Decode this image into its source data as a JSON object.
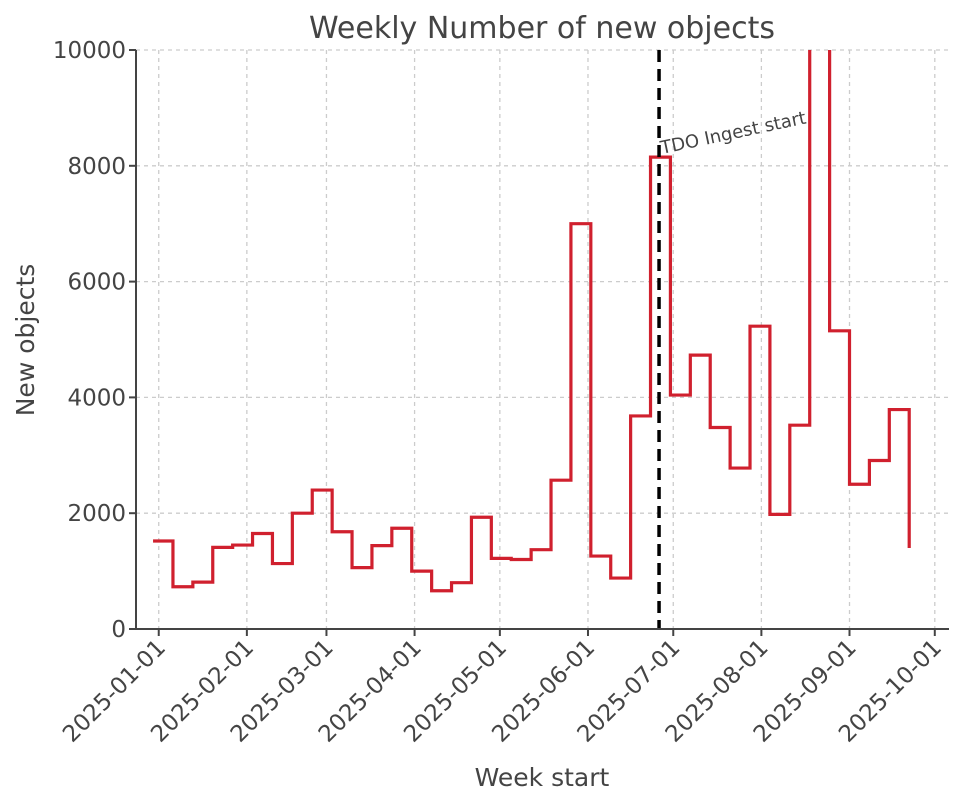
{
  "chart_data": {
    "type": "line",
    "step": "post",
    "title": "Weekly Number of new objects",
    "xlabel": "Week start",
    "ylabel": "New objects",
    "ylim": [
      0,
      10000
    ],
    "xlim": [
      "2024-12-24",
      "2025-10-06"
    ],
    "grid": true,
    "color": "#d0202e",
    "yticks": [
      0,
      2000,
      4000,
      6000,
      8000,
      10000
    ],
    "ytick_labels": [
      "0",
      "2000",
      "4000",
      "6000",
      "8000",
      "10000"
    ],
    "xticks": [
      "2025-01-01",
      "2025-02-01",
      "2025-03-01",
      "2025-04-01",
      "2025-05-01",
      "2025-06-01",
      "2025-07-01",
      "2025-08-01",
      "2025-09-01",
      "2025-10-01"
    ],
    "xtick_labels": [
      "2025-01-01",
      "2025-02-01",
      "2025-03-01",
      "2025-04-01",
      "2025-05-01",
      "2025-06-01",
      "2025-07-01",
      "2025-08-01",
      "2025-09-01",
      "2025-10-01"
    ],
    "x": [
      "2024-12-30",
      "2025-01-06",
      "2025-01-13",
      "2025-01-20",
      "2025-01-27",
      "2025-02-03",
      "2025-02-10",
      "2025-02-17",
      "2025-02-24",
      "2025-03-03",
      "2025-03-10",
      "2025-03-17",
      "2025-03-24",
      "2025-03-31",
      "2025-04-07",
      "2025-04-14",
      "2025-04-21",
      "2025-04-28",
      "2025-05-05",
      "2025-05-12",
      "2025-05-19",
      "2025-05-26",
      "2025-06-02",
      "2025-06-09",
      "2025-06-16",
      "2025-06-23",
      "2025-06-30",
      "2025-07-07",
      "2025-07-14",
      "2025-07-21",
      "2025-07-28",
      "2025-08-04",
      "2025-08-11",
      "2025-08-18",
      "2025-08-25",
      "2025-09-01",
      "2025-09-08",
      "2025-09-15",
      "2025-09-22"
    ],
    "values": [
      1520,
      730,
      810,
      1410,
      1450,
      1650,
      1130,
      2000,
      2400,
      1680,
      1060,
      1440,
      1740,
      1000,
      660,
      800,
      1930,
      1220,
      1200,
      1370,
      2570,
      7000,
      1260,
      880,
      3680,
      8150,
      4040,
      4730,
      3480,
      2780,
      5230,
      1980,
      3520,
      10500,
      5150,
      2500,
      2910,
      3790,
      1400
    ],
    "annotations": [
      {
        "text": "TDO Ingest start",
        "x": "2025-06-26",
        "style": "vertical-dashed-line",
        "color": "#000000"
      }
    ]
  }
}
